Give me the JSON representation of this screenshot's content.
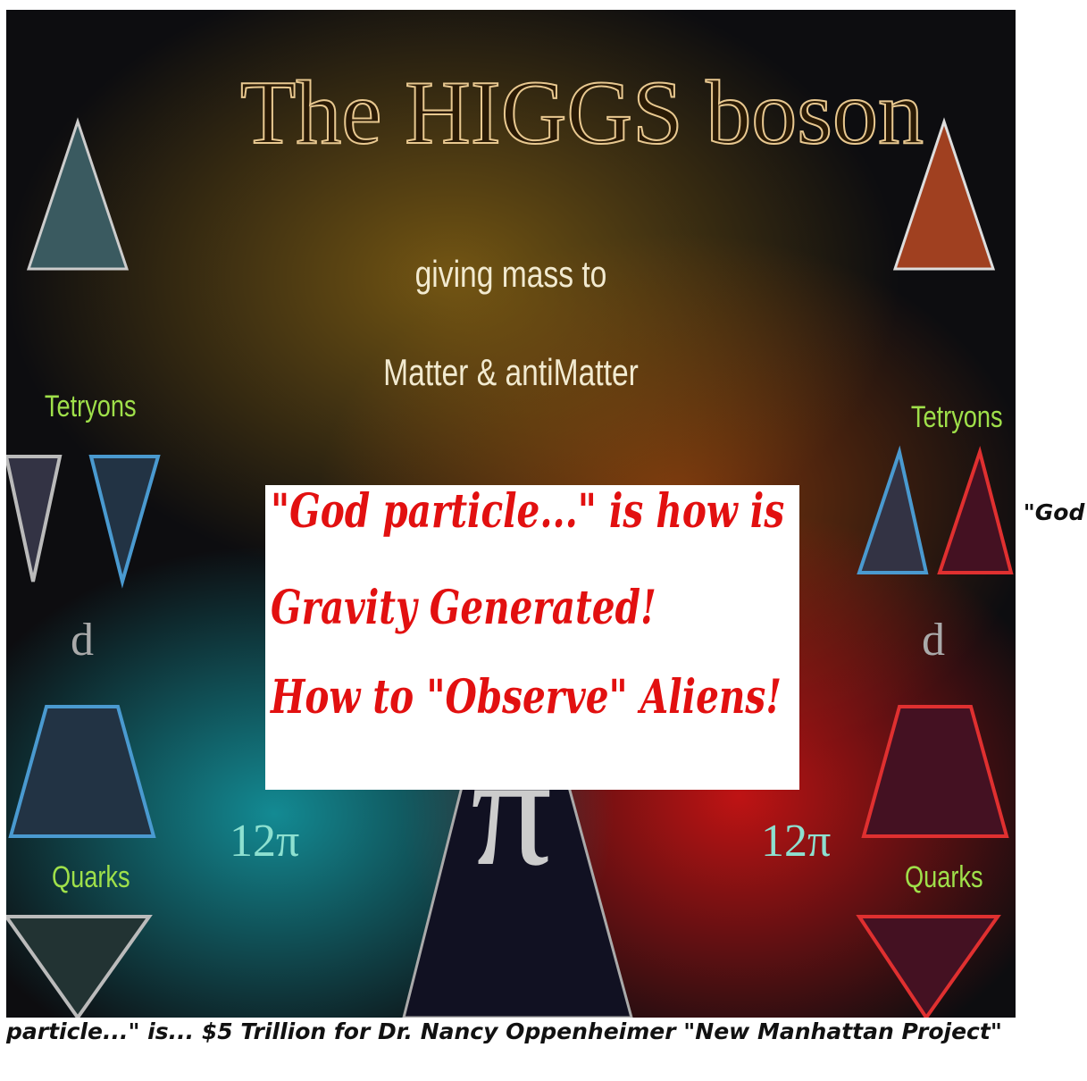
{
  "image": {
    "title": "The HIGGS boson",
    "subtitle_lines": [
      "giving mass to",
      "Matter & antiMatter"
    ],
    "labels": {
      "tetryons_left": "Tetryons",
      "tetryons_right": "Tetryons",
      "quarks_left": "Quarks",
      "quarks_right": "Quarks",
      "twelve_pi_left": "12π",
      "twelve_pi_right": "12π",
      "d_left": "d",
      "d_right": "d",
      "pi": "π"
    },
    "overlay_lines": [
      "\"God particle...\" is how is",
      "Gravity Generated!",
      "How to \"Observe\" Aliens!"
    ]
  },
  "caption": "\"God particle...\" is... $5 Trillion for Dr. Nancy Oppenheimer \"New Manhattan Project\""
}
